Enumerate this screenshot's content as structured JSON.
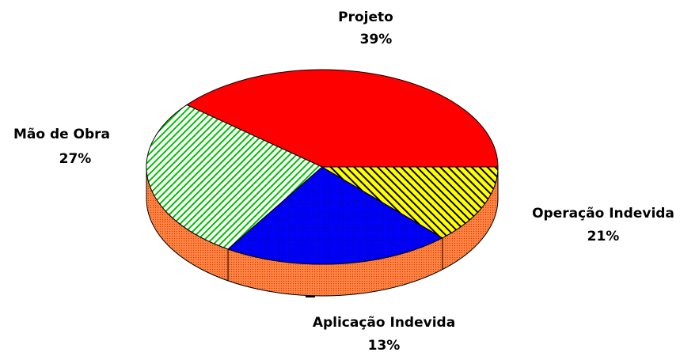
{
  "chart_data": {
    "type": "pie",
    "categories": [
      "Projeto",
      "Mão de Obra",
      "Operação Indevida",
      "Aplicação Indevida"
    ],
    "values": [
      39,
      27,
      21,
      13
    ],
    "value_labels": [
      "39%",
      "27%",
      "21%",
      "13%"
    ],
    "colors": [
      "#ff0000",
      "#00c000",
      "#0000ff",
      "#ffff00"
    ]
  }
}
